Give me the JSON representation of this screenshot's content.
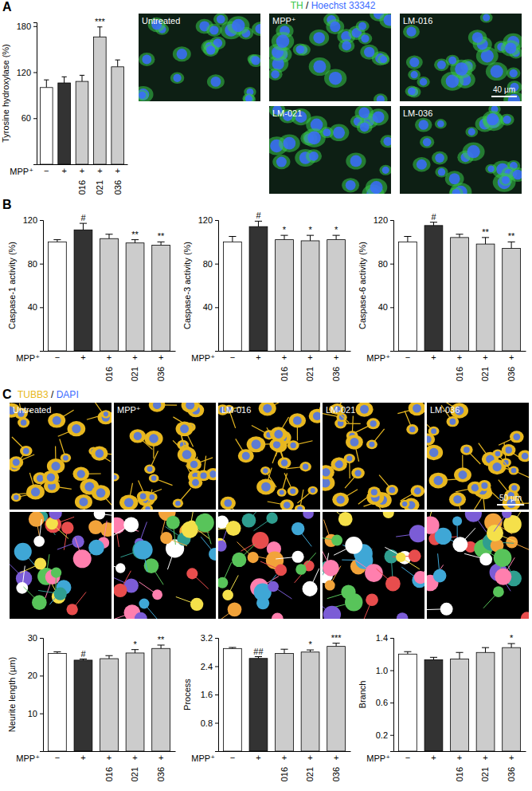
{
  "panel_letters": [
    "A",
    "B",
    "C"
  ],
  "images": [
    {
      "stains": [
        {
          "text": "TH",
          "color": "#39c84a"
        },
        {
          "text": "Hoechst 33342",
          "color": "#3b6bff"
        }
      ],
      "separator": "/",
      "labels": [
        "Untreated",
        "MPP⁺",
        "LM-016",
        "LM-021",
        "LM-036"
      ],
      "scale_bar": "40 µm"
    },
    {
      "stains": [
        {
          "text": "TUBB3",
          "color": "#e8b820"
        },
        {
          "text": "DAPI",
          "color": "#3b6bff"
        }
      ],
      "separator": "/",
      "labels": [
        "Untreated",
        "MPP⁺",
        "LM-016",
        "LM-021",
        "LM-036"
      ],
      "scale_bar": "50 µm"
    }
  ],
  "chart_data": [
    {
      "type": "bar",
      "y_label": "Tyrosine hydroxylase (%)",
      "mpp_label": "MPP⁺",
      "mpp": [
        "−",
        "+",
        "+",
        "+",
        "+"
      ],
      "categories": [
        null,
        null,
        "016",
        "021",
        "036"
      ],
      "values": [
        100,
        106,
        108,
        166,
        127
      ],
      "errors": [
        10,
        8,
        8,
        13,
        9
      ],
      "annotations": [
        null,
        null,
        null,
        "***",
        null
      ],
      "colors": [
        "#ffffff",
        "#333333",
        "#cccccc",
        "#cccccc",
        "#cccccc"
      ],
      "ylim": [
        0,
        185
      ],
      "yticks": [
        60,
        120,
        180
      ]
    },
    {
      "type": "bar",
      "y_label": "Caspase-1 activity (%)",
      "mpp_label": "MPP⁺",
      "mpp": [
        "−",
        "+",
        "+",
        "+",
        "+"
      ],
      "categories": [
        null,
        null,
        "016",
        "021",
        "036"
      ],
      "values": [
        100,
        111,
        103,
        99,
        97
      ],
      "errors": [
        2,
        6,
        4,
        3,
        3
      ],
      "annotations": [
        null,
        "#",
        null,
        "**",
        "**"
      ],
      "colors": [
        "#ffffff",
        "#333333",
        "#cccccc",
        "#cccccc",
        "#cccccc"
      ],
      "ylim": [
        0,
        120
      ],
      "yticks": [
        40,
        80,
        120
      ]
    },
    {
      "type": "bar",
      "y_label": "Caspase-3 activity (%)",
      "mpp_label": "MPP⁺",
      "mpp": [
        "−",
        "+",
        "+",
        "+",
        "+"
      ],
      "categories": [
        null,
        null,
        "016",
        "021",
        "036"
      ],
      "values": [
        100,
        114,
        102,
        101,
        102
      ],
      "errors": [
        5,
        5,
        4,
        5,
        4
      ],
      "annotations": [
        null,
        "#",
        "*",
        "*",
        "*"
      ],
      "colors": [
        "#ffffff",
        "#333333",
        "#cccccc",
        "#cccccc",
        "#cccccc"
      ],
      "ylim": [
        0,
        120
      ],
      "yticks": [
        40,
        80,
        120
      ]
    },
    {
      "type": "bar",
      "y_label": "Caspase-6 activity (%)",
      "mpp_label": "MPP⁺",
      "mpp": [
        "−",
        "+",
        "+",
        "+",
        "+"
      ],
      "categories": [
        null,
        null,
        "016",
        "021",
        "036"
      ],
      "values": [
        100,
        115,
        104,
        98,
        94
      ],
      "errors": [
        5,
        3,
        3,
        6,
        6
      ],
      "annotations": [
        null,
        "#",
        null,
        "**",
        "**"
      ],
      "colors": [
        "#ffffff",
        "#333333",
        "#cccccc",
        "#cccccc",
        "#cccccc"
      ],
      "ylim": [
        0,
        120
      ],
      "yticks": [
        40,
        80,
        120
      ]
    },
    {
      "type": "bar",
      "y_label": "Neurite length (µm)",
      "mpp_label": "MPP⁺",
      "mpp": [
        "−",
        "+",
        "+",
        "+",
        "+"
      ],
      "categories": [
        null,
        null,
        "016",
        "021",
        "036"
      ],
      "values": [
        25.9,
        24.1,
        24.5,
        26.0,
        27.2
      ],
      "errors": [
        0.4,
        0.3,
        0.8,
        0.9,
        0.9
      ],
      "annotations": [
        null,
        "#",
        null,
        "*",
        "**"
      ],
      "colors": [
        "#ffffff",
        "#333333",
        "#cccccc",
        "#cccccc",
        "#cccccc"
      ],
      "ylim": [
        0,
        30
      ],
      "yticks": [
        10,
        20,
        30
      ]
    },
    {
      "type": "bar",
      "y_label": "Process",
      "mpp_label": "MPP⁺",
      "mpp": [
        "−",
        "+",
        "+",
        "+",
        "+"
      ],
      "categories": [
        null,
        null,
        "016",
        "021",
        "036"
      ],
      "values": [
        2.9,
        2.62,
        2.76,
        2.8,
        2.96
      ],
      "errors": [
        0.03,
        0.05,
        0.12,
        0.06,
        0.09
      ],
      "annotations": [
        null,
        "##",
        null,
        "*",
        "***"
      ],
      "colors": [
        "#ffffff",
        "#333333",
        "#cccccc",
        "#cccccc",
        "#cccccc"
      ],
      "ylim": [
        0,
        3.2
      ],
      "yticks": [
        0.8,
        1.6,
        2.4,
        3.2
      ]
    },
    {
      "type": "bar",
      "y_label": "Branch",
      "mpp_label": "MPP⁺",
      "mpp": [
        "−",
        "+",
        "+",
        "+",
        "+"
      ],
      "categories": [
        null,
        null,
        "016",
        "021",
        "036"
      ],
      "values": [
        1.2,
        1.13,
        1.14,
        1.22,
        1.28
      ],
      "errors": [
        0.03,
        0.03,
        0.08,
        0.06,
        0.05
      ],
      "annotations": [
        null,
        null,
        null,
        null,
        "*"
      ],
      "colors": [
        "#ffffff",
        "#333333",
        "#cccccc",
        "#cccccc",
        "#cccccc"
      ],
      "ylim": [
        0,
        1.4
      ],
      "yticks": [
        0.2,
        0.6,
        {
          "value": 1,
          "label": "1.0"
        },
        1.4
      ]
    }
  ]
}
